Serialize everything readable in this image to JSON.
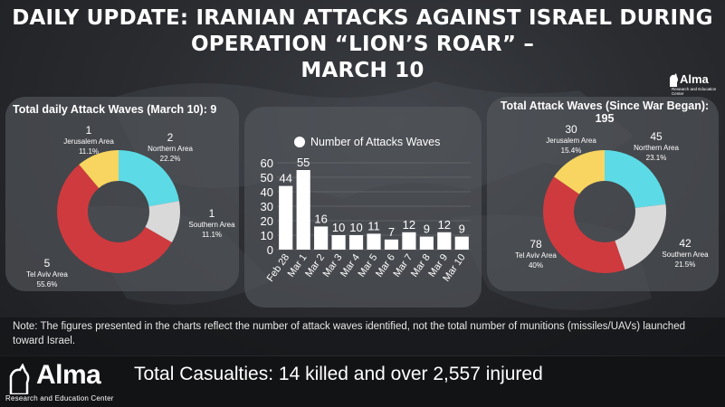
{
  "title_line1": "Daily Update: Iranian Attacks Against Israel During Operation “Lion’s Roar” –",
  "title_line2": "March 10",
  "brand": {
    "name": "Alma",
    "subtitle": "Research and Education Center"
  },
  "left_panel": {
    "title": "Total daily Attack Waves (March 10): 9",
    "slices": [
      {
        "area": "Jerusalem Area",
        "value": "1",
        "percent": "11.1%",
        "color": "#f7d560"
      },
      {
        "area": "Northern Area",
        "value": "2",
        "percent": "22.2%",
        "color": "#5cdbe6"
      },
      {
        "area": "Southern Area",
        "value": "1",
        "percent": "11.1%",
        "color": "#d9d9d9"
      },
      {
        "area": "Tel Aviv Area",
        "value": "5",
        "percent": "55.6%",
        "color": "#cf3a3e"
      }
    ]
  },
  "right_panel": {
    "title_line1": "Total Attack Waves (Since War Began):",
    "title_line2": "195",
    "slices": [
      {
        "area": "Jerusalem Area",
        "value": "30",
        "percent": "15.4%",
        "color": "#f7d560"
      },
      {
        "area": "Northern Area",
        "value": "45",
        "percent": "23.1%",
        "color": "#5cdbe6"
      },
      {
        "area": "Southern Area",
        "value": "42",
        "percent": "21.5%",
        "color": "#d9d9d9"
      },
      {
        "area": "Tel Aviv Area",
        "value": "78",
        "percent": "40%",
        "color": "#cf3a3e"
      }
    ]
  },
  "bar_panel": {
    "legend": "Number of Attacks Waves"
  },
  "chart_data": [
    {
      "type": "pie",
      "title": "Total daily Attack Waves (March 10): 9",
      "categories": [
        "Jerusalem Area",
        "Northern Area",
        "Southern Area",
        "Tel Aviv Area"
      ],
      "values": [
        1,
        2,
        1,
        5
      ],
      "percents": [
        "11.1%",
        "22.2%",
        "11.1%",
        "55.6%"
      ]
    },
    {
      "type": "bar",
      "title": "",
      "legend": "Number of Attacks Waves",
      "categories": [
        "Feb 28",
        "Mar 1",
        "Mar 2",
        "Mar 3",
        "Mar 4",
        "Mar 5",
        "Mar 6",
        "Mar 7",
        "Mar 8",
        "Mar 9",
        "Mar 10"
      ],
      "values": [
        44,
        55,
        16,
        10,
        10,
        11,
        7,
        12,
        9,
        12,
        9
      ],
      "yticks": [
        0,
        10,
        20,
        30,
        40,
        50,
        60
      ],
      "ylim": [
        0,
        60
      ],
      "grid": true
    },
    {
      "type": "pie",
      "title": "Total Attack Waves (Since War Began): 195",
      "categories": [
        "Jerusalem Area",
        "Northern Area",
        "Southern Area",
        "Tel Aviv Area"
      ],
      "values": [
        30,
        45,
        42,
        78
      ],
      "percents": [
        "15.4%",
        "23.1%",
        "21.5%",
        "40%"
      ]
    }
  ],
  "note": "Note: The figures presented in the charts reflect the number of attack waves identified, not the total number of munitions (missiles/UAVs) launched toward Israel.",
  "casualties": "Total Casualties: 14 killed and over 2,557 injured"
}
